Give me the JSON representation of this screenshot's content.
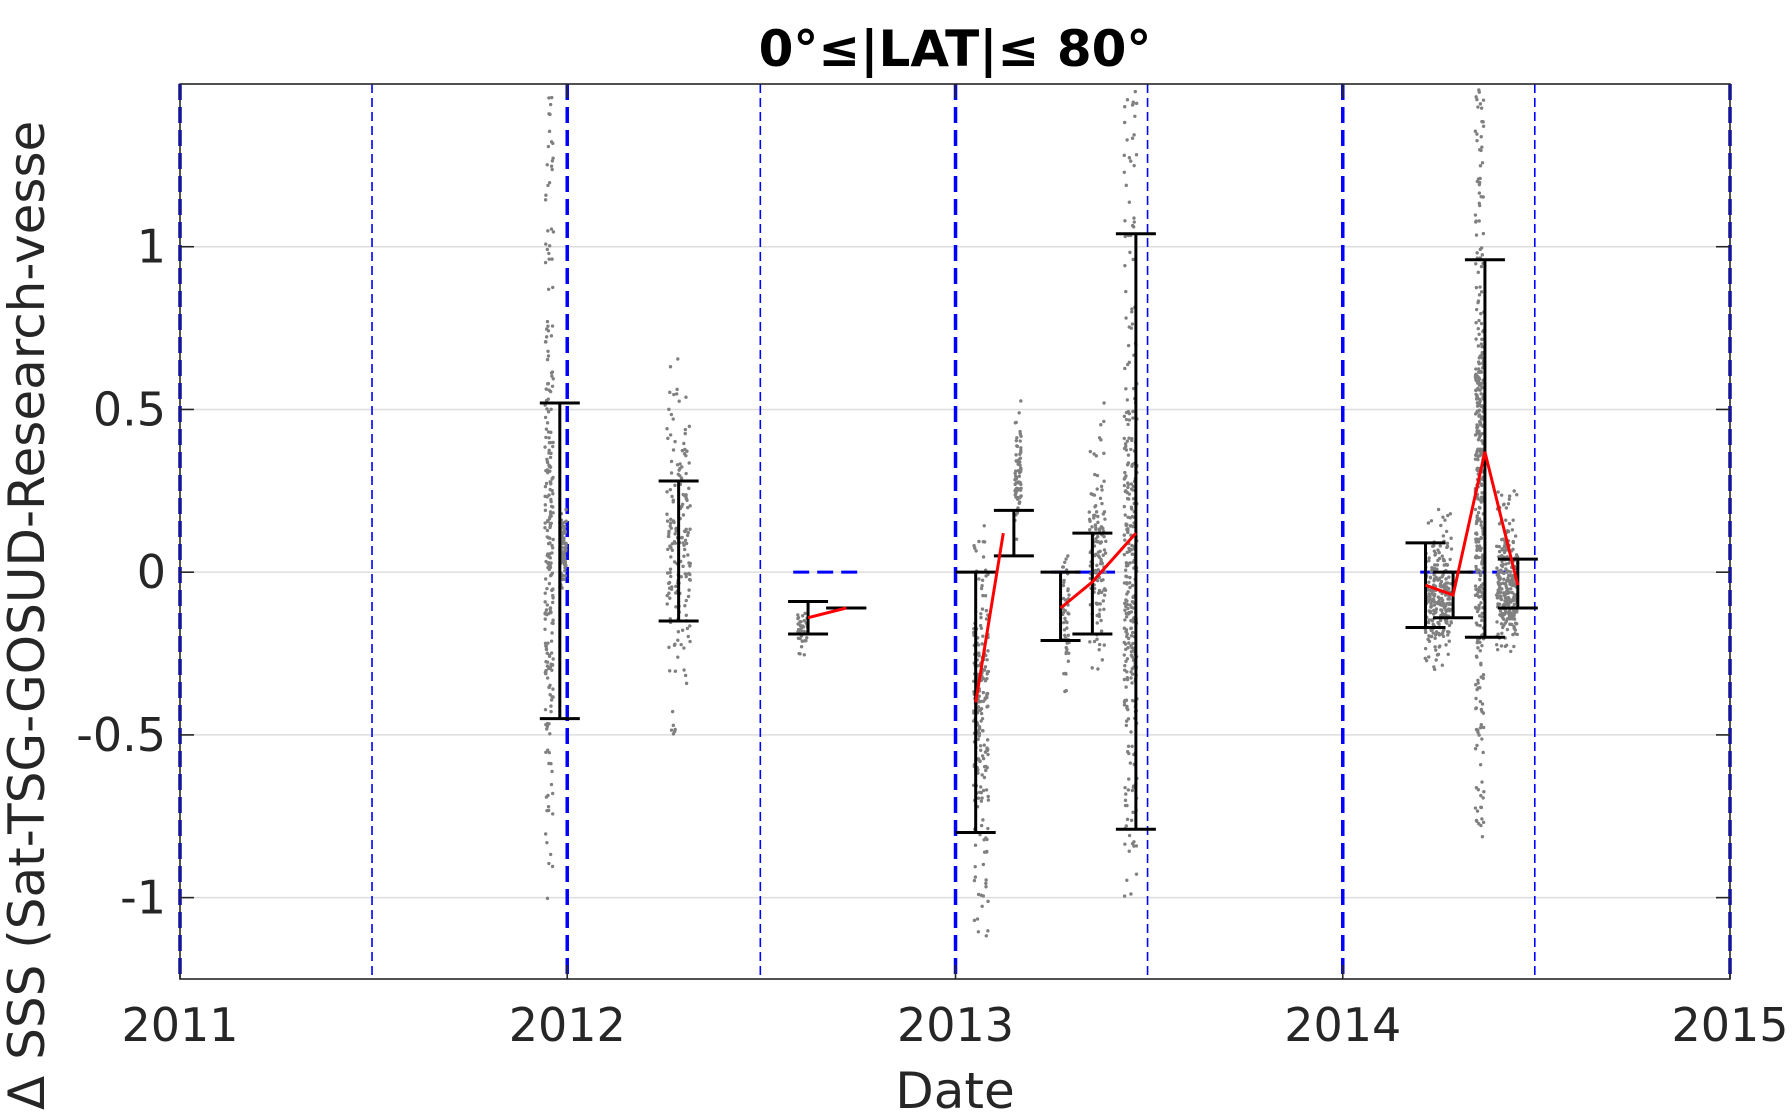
{
  "chart_data": {
    "type": "scatter",
    "title": "0°≤|LAT|≤ 80°",
    "xlabel": "Date",
    "ylabel": "Δ SSS (Sat-TSG-GOSUD-Research-vesse",
    "xlim": [
      "2011-01-01",
      "2015-01-01"
    ],
    "ylim": [
      -1.25,
      1.5
    ],
    "grid": "horizontal",
    "colors": {
      "scatter": "#808080",
      "median_line": "#ff0000",
      "error_bars": "#000000",
      "reference_lines": "#0000ff",
      "grid": "#dddddd"
    },
    "x_ticks": [
      {
        "label": "2011",
        "date": "2011-01-01"
      },
      {
        "label": "2012",
        "date": "2012-01-01"
      },
      {
        "label": "2013",
        "date": "2013-01-01"
      },
      {
        "label": "2014",
        "date": "2014-01-01"
      },
      {
        "label": "2015",
        "date": "2015-01-01"
      }
    ],
    "y_ticks": [
      {
        "label": "-1",
        "value": -1
      },
      {
        "label": "-0.5",
        "value": -0.5
      },
      {
        "label": "0",
        "value": 0
      },
      {
        "label": "0.5",
        "value": 0.5
      },
      {
        "label": "1",
        "value": 1
      }
    ],
    "year_lines": [
      "2011-01-01",
      "2012-01-01",
      "2013-01-01",
      "2014-01-01",
      "2015-01-01"
    ],
    "half_year_lines": [
      "2011-07-01",
      "2012-07-01",
      "2013-07-01",
      "2014-07-01"
    ],
    "zero_segments": [
      {
        "x0": "2012-08-01",
        "x1": "2012-10-01",
        "y": 0
      },
      {
        "x0": "2013-04-01",
        "x1": "2013-06-01",
        "y": 0
      },
      {
        "x0": "2014-03-15",
        "x1": "2014-06-15",
        "y": 0
      }
    ],
    "error_bars": [
      {
        "date": "2011-12-25",
        "low": -0.45,
        "high": 0.52
      },
      {
        "date": "2012-04-15",
        "low": -0.15,
        "high": 0.28
      },
      {
        "date": "2012-08-15",
        "low": -0.19,
        "high": -0.09
      },
      {
        "date": "2012-09-20",
        "low": -0.11,
        "high": -0.11
      },
      {
        "date": "2013-01-20",
        "low": -0.8,
        "high": 0.0
      },
      {
        "date": "2013-02-25",
        "low": 0.05,
        "high": 0.19
      },
      {
        "date": "2013-04-10",
        "low": -0.21,
        "high": 0.0
      },
      {
        "date": "2013-05-10",
        "low": -0.19,
        "high": 0.12
      },
      {
        "date": "2013-06-20",
        "low": -0.79,
        "high": 1.04
      },
      {
        "date": "2014-03-20",
        "low": -0.17,
        "high": 0.09
      },
      {
        "date": "2014-04-15",
        "low": -0.14,
        "high": 0.0
      },
      {
        "date": "2014-05-15",
        "low": -0.2,
        "high": 0.96
      },
      {
        "date": "2014-06-15",
        "low": -0.11,
        "high": 0.04
      }
    ],
    "median_segments": [
      [
        {
          "date": "2012-08-15",
          "y": -0.14
        },
        {
          "date": "2012-09-20",
          "y": -0.11
        }
      ],
      [
        {
          "date": "2013-01-20",
          "y": -0.4
        },
        {
          "date": "2013-02-15",
          "y": 0.12
        }
      ],
      [
        {
          "date": "2013-04-10",
          "y": -0.11
        },
        {
          "date": "2013-05-10",
          "y": -0.03
        },
        {
          "date": "2013-06-20",
          "y": 0.12
        }
      ],
      [
        {
          "date": "2014-03-20",
          "y": -0.04
        },
        {
          "date": "2014-04-15",
          "y": -0.07
        },
        {
          "date": "2014-05-15",
          "y": 0.37
        },
        {
          "date": "2014-06-15",
          "y": -0.04
        }
      ]
    ],
    "point_clusters": [
      {
        "date": "2011-12-15",
        "spread_days": 8,
        "min": -1.02,
        "max": 1.48,
        "center": 0.05,
        "count": 240
      },
      {
        "date": "2011-12-28",
        "spread_days": 6,
        "min": -0.05,
        "max": 0.2,
        "center": 0.08,
        "count": 90
      },
      {
        "date": "2012-04-15",
        "spread_days": 22,
        "min": -0.35,
        "max": 0.66,
        "center": 0.05,
        "count": 170
      },
      {
        "date": "2012-04-10",
        "spread_days": 4,
        "min": -0.58,
        "max": -0.4,
        "center": -0.5,
        "count": 6
      },
      {
        "date": "2012-08-10",
        "spread_days": 10,
        "min": -0.27,
        "max": -0.12,
        "center": -0.18,
        "count": 40
      },
      {
        "date": "2013-01-25",
        "spread_days": 14,
        "min": -1.15,
        "max": 0.15,
        "center": -0.4,
        "count": 220
      },
      {
        "date": "2013-03-01",
        "spread_days": 6,
        "min": 0.1,
        "max": 0.55,
        "center": 0.3,
        "count": 70
      },
      {
        "date": "2013-04-15",
        "spread_days": 6,
        "min": -0.37,
        "max": 0.05,
        "center": -0.15,
        "count": 50
      },
      {
        "date": "2013-05-15",
        "spread_days": 16,
        "min": -0.3,
        "max": 0.53,
        "center": 0.05,
        "count": 130
      },
      {
        "date": "2013-06-15",
        "spread_days": 12,
        "min": -1.06,
        "max": 1.48,
        "center": 0.0,
        "count": 320
      },
      {
        "date": "2014-04-01",
        "spread_days": 25,
        "min": -0.3,
        "max": 0.2,
        "center": -0.08,
        "count": 260
      },
      {
        "date": "2014-05-10",
        "spread_days": 8,
        "min": -0.82,
        "max": 1.5,
        "center": 0.3,
        "count": 380
      },
      {
        "date": "2014-05-08",
        "spread_days": 4,
        "min": 0.55,
        "max": 0.65,
        "center": 0.6,
        "count": 20
      },
      {
        "date": "2014-06-05",
        "spread_days": 20,
        "min": -0.25,
        "max": 0.25,
        "center": -0.05,
        "count": 260
      }
    ]
  }
}
